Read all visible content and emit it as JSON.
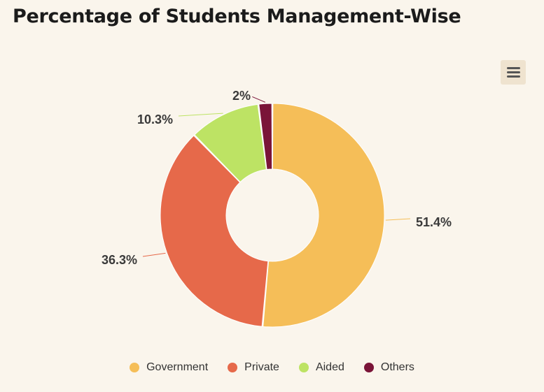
{
  "header": {
    "title": "Percentage of Students Management-Wise"
  },
  "toolbar": {
    "menu_icon": "hamburger-menu-icon"
  },
  "chart_data": {
    "type": "pie",
    "variant": "donut",
    "title": "Percentage of Students Management-Wise",
    "categories": [
      "Government",
      "Private",
      "Aided",
      "Others"
    ],
    "values": [
      51.4,
      36.3,
      10.3,
      2
    ],
    "labels": [
      "51.4%",
      "36.3%",
      "10.3%",
      "2%"
    ],
    "colors": [
      "#f5be58",
      "#e6694a",
      "#bde364",
      "#7a1438"
    ],
    "legend_position": "bottom-center"
  }
}
